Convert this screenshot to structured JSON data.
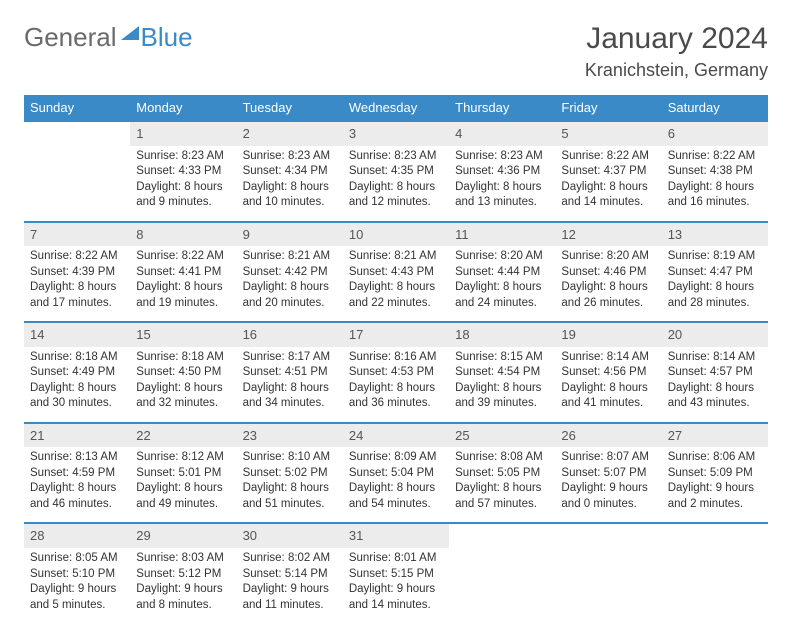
{
  "brand": {
    "part1": "General",
    "part2": "Blue"
  },
  "title": "January 2024",
  "location": "Kranichstein, Germany",
  "weekdays": [
    "Sunday",
    "Monday",
    "Tuesday",
    "Wednesday",
    "Thursday",
    "Friday",
    "Saturday"
  ],
  "colors": {
    "header_bg": "#3a8ac7",
    "header_text": "#ffffff",
    "daynum_bg": "#ececec",
    "daynum_border": "#3a8ac7",
    "body_text": "#333333",
    "title_text": "#4a4a4a",
    "logo_gray": "#6a6a6a",
    "logo_blue": "#3a8ac7",
    "background": "#ffffff"
  },
  "typography": {
    "title_fontsize": 30,
    "location_fontsize": 18,
    "weekday_fontsize": 13,
    "daynum_fontsize": 13,
    "cell_fontsize": 11.5
  },
  "first_weekday_index": 1,
  "days": [
    {
      "n": 1,
      "sunrise": "8:23 AM",
      "sunset": "4:33 PM",
      "daylight": "8 hours and 9 minutes."
    },
    {
      "n": 2,
      "sunrise": "8:23 AM",
      "sunset": "4:34 PM",
      "daylight": "8 hours and 10 minutes."
    },
    {
      "n": 3,
      "sunrise": "8:23 AM",
      "sunset": "4:35 PM",
      "daylight": "8 hours and 12 minutes."
    },
    {
      "n": 4,
      "sunrise": "8:23 AM",
      "sunset": "4:36 PM",
      "daylight": "8 hours and 13 minutes."
    },
    {
      "n": 5,
      "sunrise": "8:22 AM",
      "sunset": "4:37 PM",
      "daylight": "8 hours and 14 minutes."
    },
    {
      "n": 6,
      "sunrise": "8:22 AM",
      "sunset": "4:38 PM",
      "daylight": "8 hours and 16 minutes."
    },
    {
      "n": 7,
      "sunrise": "8:22 AM",
      "sunset": "4:39 PM",
      "daylight": "8 hours and 17 minutes."
    },
    {
      "n": 8,
      "sunrise": "8:22 AM",
      "sunset": "4:41 PM",
      "daylight": "8 hours and 19 minutes."
    },
    {
      "n": 9,
      "sunrise": "8:21 AM",
      "sunset": "4:42 PM",
      "daylight": "8 hours and 20 minutes."
    },
    {
      "n": 10,
      "sunrise": "8:21 AM",
      "sunset": "4:43 PM",
      "daylight": "8 hours and 22 minutes."
    },
    {
      "n": 11,
      "sunrise": "8:20 AM",
      "sunset": "4:44 PM",
      "daylight": "8 hours and 24 minutes."
    },
    {
      "n": 12,
      "sunrise": "8:20 AM",
      "sunset": "4:46 PM",
      "daylight": "8 hours and 26 minutes."
    },
    {
      "n": 13,
      "sunrise": "8:19 AM",
      "sunset": "4:47 PM",
      "daylight": "8 hours and 28 minutes."
    },
    {
      "n": 14,
      "sunrise": "8:18 AM",
      "sunset": "4:49 PM",
      "daylight": "8 hours and 30 minutes."
    },
    {
      "n": 15,
      "sunrise": "8:18 AM",
      "sunset": "4:50 PM",
      "daylight": "8 hours and 32 minutes."
    },
    {
      "n": 16,
      "sunrise": "8:17 AM",
      "sunset": "4:51 PM",
      "daylight": "8 hours and 34 minutes."
    },
    {
      "n": 17,
      "sunrise": "8:16 AM",
      "sunset": "4:53 PM",
      "daylight": "8 hours and 36 minutes."
    },
    {
      "n": 18,
      "sunrise": "8:15 AM",
      "sunset": "4:54 PM",
      "daylight": "8 hours and 39 minutes."
    },
    {
      "n": 19,
      "sunrise": "8:14 AM",
      "sunset": "4:56 PM",
      "daylight": "8 hours and 41 minutes."
    },
    {
      "n": 20,
      "sunrise": "8:14 AM",
      "sunset": "4:57 PM",
      "daylight": "8 hours and 43 minutes."
    },
    {
      "n": 21,
      "sunrise": "8:13 AM",
      "sunset": "4:59 PM",
      "daylight": "8 hours and 46 minutes."
    },
    {
      "n": 22,
      "sunrise": "8:12 AM",
      "sunset": "5:01 PM",
      "daylight": "8 hours and 49 minutes."
    },
    {
      "n": 23,
      "sunrise": "8:10 AM",
      "sunset": "5:02 PM",
      "daylight": "8 hours and 51 minutes."
    },
    {
      "n": 24,
      "sunrise": "8:09 AM",
      "sunset": "5:04 PM",
      "daylight": "8 hours and 54 minutes."
    },
    {
      "n": 25,
      "sunrise": "8:08 AM",
      "sunset": "5:05 PM",
      "daylight": "8 hours and 57 minutes."
    },
    {
      "n": 26,
      "sunrise": "8:07 AM",
      "sunset": "5:07 PM",
      "daylight": "9 hours and 0 minutes."
    },
    {
      "n": 27,
      "sunrise": "8:06 AM",
      "sunset": "5:09 PM",
      "daylight": "9 hours and 2 minutes."
    },
    {
      "n": 28,
      "sunrise": "8:05 AM",
      "sunset": "5:10 PM",
      "daylight": "9 hours and 5 minutes."
    },
    {
      "n": 29,
      "sunrise": "8:03 AM",
      "sunset": "5:12 PM",
      "daylight": "9 hours and 8 minutes."
    },
    {
      "n": 30,
      "sunrise": "8:02 AM",
      "sunset": "5:14 PM",
      "daylight": "9 hours and 11 minutes."
    },
    {
      "n": 31,
      "sunrise": "8:01 AM",
      "sunset": "5:15 PM",
      "daylight": "9 hours and 14 minutes."
    }
  ],
  "labels": {
    "sunrise": "Sunrise:",
    "sunset": "Sunset:",
    "daylight": "Daylight:"
  }
}
